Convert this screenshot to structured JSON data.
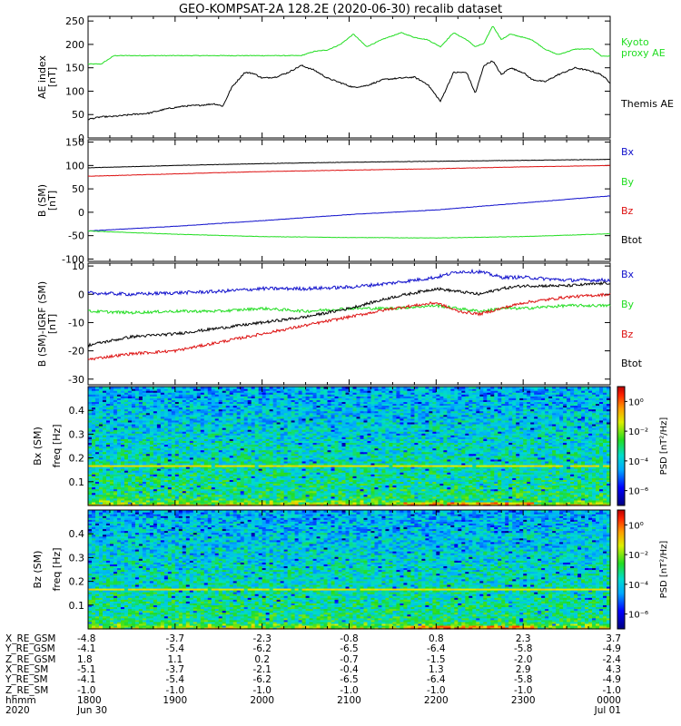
{
  "title": "GEO-KOMPSAT-2A 128.2E (2020-06-30) recalib dataset",
  "colors": {
    "black": "#000000",
    "green": "#22dd22",
    "red": "#dd1111",
    "blue": "#1111cc"
  },
  "chart_data": [
    {
      "type": "line",
      "panel": "ae",
      "ylabel": "AE index",
      "yunit": "[nT]",
      "ylim": [
        0,
        260
      ],
      "yticks": [
        0,
        50,
        100,
        150,
        200,
        250
      ],
      "x_hours": [
        18.0,
        18.15,
        18.3,
        18.5,
        18.7,
        18.9,
        19.1,
        19.3,
        19.45,
        19.55,
        19.65,
        19.8,
        19.9,
        20.0,
        20.15,
        20.3,
        20.45,
        20.6,
        20.75,
        20.9,
        21.05,
        21.2,
        21.4,
        21.6,
        21.75,
        21.9,
        22.05,
        22.2,
        22.35,
        22.45,
        22.55,
        22.65,
        22.75,
        22.85,
        23.0,
        23.1,
        23.25,
        23.4,
        23.6,
        23.8,
        23.9,
        24.0
      ],
      "series": [
        {
          "name": "Kyoto proxy AE",
          "color": "#22dd22",
          "values": [
            158,
            158,
            176,
            176,
            176,
            176,
            176,
            176,
            176,
            176,
            176,
            176,
            176,
            176,
            176,
            176,
            176,
            185,
            188,
            200,
            222,
            195,
            212,
            225,
            215,
            210,
            195,
            225,
            210,
            195,
            202,
            240,
            210,
            222,
            215,
            210,
            190,
            178,
            190,
            190,
            175,
            175
          ]
        },
        {
          "name": "Themis AE",
          "color": "#000000",
          "values": [
            40,
            45,
            46,
            50,
            53,
            62,
            68,
            70,
            73,
            68,
            108,
            140,
            138,
            128,
            130,
            140,
            155,
            145,
            128,
            118,
            108,
            112,
            125,
            128,
            130,
            115,
            78,
            140,
            140,
            95,
            155,
            165,
            135,
            150,
            140,
            125,
            120,
            135,
            150,
            142,
            135,
            118
          ]
        }
      ],
      "legend": [
        "Kyoto proxy AE",
        "Themis AE"
      ]
    },
    {
      "type": "line",
      "panel": "b_sm",
      "ylabel": "B (SM)",
      "yunit": "[nT]",
      "ylim": [
        -105,
        155
      ],
      "yticks": [
        -100,
        -50,
        0,
        50,
        100,
        150
      ],
      "x_hours": [
        18.0,
        19.0,
        20.0,
        21.0,
        22.0,
        23.0,
        24.0
      ],
      "series": [
        {
          "name": "Bx",
          "color": "#1111cc",
          "values": [
            -40,
            -30,
            -18,
            -5,
            5,
            20,
            35
          ]
        },
        {
          "name": "By",
          "color": "#22dd22",
          "values": [
            -40,
            -47,
            -52,
            -54,
            -55,
            -52,
            -46
          ]
        },
        {
          "name": "Bz",
          "color": "#dd1111",
          "values": [
            77,
            82,
            87,
            90,
            93,
            97,
            100
          ]
        },
        {
          "name": "Btot",
          "color": "#000000",
          "values": [
            95,
            100,
            104,
            107,
            109,
            111,
            113
          ]
        }
      ],
      "legend": [
        "Bx",
        "By",
        "Bz",
        "Btot"
      ]
    },
    {
      "type": "line",
      "panel": "b_igrf",
      "ylabel": "B (SM)-IGRF (SM)",
      "yunit": "[nT]",
      "ylim": [
        -32,
        11
      ],
      "yticks": [
        -30,
        -20,
        -10,
        0,
        10
      ],
      "x_hours": [
        18.0,
        18.5,
        19.0,
        19.5,
        20.0,
        20.5,
        21.0,
        21.5,
        22.0,
        22.25,
        22.5,
        22.75,
        23.0,
        23.5,
        24.0
      ],
      "series": [
        {
          "name": "Bx",
          "color": "#1111cc",
          "values": [
            0.5,
            0,
            0.5,
            1,
            2,
            2,
            2.5,
            4,
            6,
            8,
            8,
            6,
            6,
            5,
            5
          ]
        },
        {
          "name": "By",
          "color": "#22dd22",
          "values": [
            -6,
            -6.5,
            -6,
            -6,
            -5,
            -6,
            -5,
            -5,
            -4,
            -5,
            -6,
            -5,
            -5,
            -4,
            -4
          ]
        },
        {
          "name": "Bz",
          "color": "#dd1111",
          "values": [
            -23,
            -21,
            -20,
            -17,
            -14,
            -11,
            -8,
            -5,
            -3,
            -6,
            -7,
            -5,
            -3,
            -1,
            0
          ]
        },
        {
          "name": "Btot",
          "color": "#000000",
          "values": [
            -18,
            -15,
            -14,
            -12,
            -10,
            -8,
            -5,
            -1,
            2,
            1,
            0,
            2,
            3,
            3,
            4
          ]
        }
      ],
      "legend": [
        "Bx",
        "By",
        "Bz",
        "Btot"
      ]
    },
    {
      "type": "heatmap",
      "panel": "spec_bx",
      "ylabel": "Bx (SM)",
      "ylabel2": "freq [Hz]",
      "ylim": [
        0.0,
        0.5
      ],
      "yticks": [
        0.1,
        0.2,
        0.3,
        0.4
      ],
      "colorbar": {
        "label": "PSD [nT²/Hz]",
        "ticks": [
          "10⁰",
          "10⁻²",
          "10⁻⁴",
          "10⁻⁶"
        ],
        "tick_exponents": [
          0,
          -2,
          -4,
          -6
        ],
        "range_exponents": [
          -7,
          1
        ]
      },
      "noise_line_hz": 0.167
    },
    {
      "type": "heatmap",
      "panel": "spec_bz",
      "ylabel": "Bz (SM)",
      "ylabel2": "freq [Hz]",
      "ylim": [
        0.0,
        0.5
      ],
      "yticks": [
        0.1,
        0.2,
        0.3,
        0.4
      ],
      "colorbar": {
        "label": "PSD [nT²/Hz]",
        "ticks": [
          "10⁰",
          "10⁻²",
          "10⁻⁴",
          "10⁻⁶"
        ],
        "tick_exponents": [
          0,
          -2,
          -4,
          -6
        ],
        "range_exponents": [
          -7,
          1
        ]
      },
      "noise_line_hz": 0.167
    }
  ],
  "ephemeris": {
    "rows": [
      {
        "name": "X_RE_GSM",
        "values": [
          "-4.8",
          "-3.7",
          "-2.3",
          "-0.8",
          "0.8",
          "2.3",
          "3.7"
        ]
      },
      {
        "name": "Y_RE_GSM",
        "values": [
          "-4.1",
          "-5.4",
          "-6.2",
          "-6.5",
          "-6.4",
          "-5.8",
          "-4.9"
        ]
      },
      {
        "name": "Z_RE_GSM",
        "values": [
          "1.8",
          "1.1",
          "0.2",
          "-0.7",
          "-1.5",
          "-2.0",
          "-2.4"
        ]
      },
      {
        "name": "X_RE_SM",
        "values": [
          "-5.1",
          "-3.7",
          "-2.1",
          "-0.4",
          "1.3",
          "2.9",
          "4.3"
        ]
      },
      {
        "name": "Y_RE_SM",
        "values": [
          "-4.1",
          "-5.4",
          "-6.2",
          "-6.5",
          "-6.4",
          "-5.8",
          "-4.9"
        ]
      },
      {
        "name": "Z_RE_SM",
        "values": [
          "-1.0",
          "-1.0",
          "-1.0",
          "-1.0",
          "-1.0",
          "-1.0",
          "-1.0"
        ]
      },
      {
        "name": "hhmm",
        "values": [
          "1800",
          "1900",
          "2000",
          "2100",
          "2200",
          "2300",
          "0000"
        ]
      },
      {
        "name": "2020",
        "values": [
          "Jun 30",
          "",
          "",
          "",
          "",
          "",
          "Jul 01"
        ]
      }
    ]
  }
}
